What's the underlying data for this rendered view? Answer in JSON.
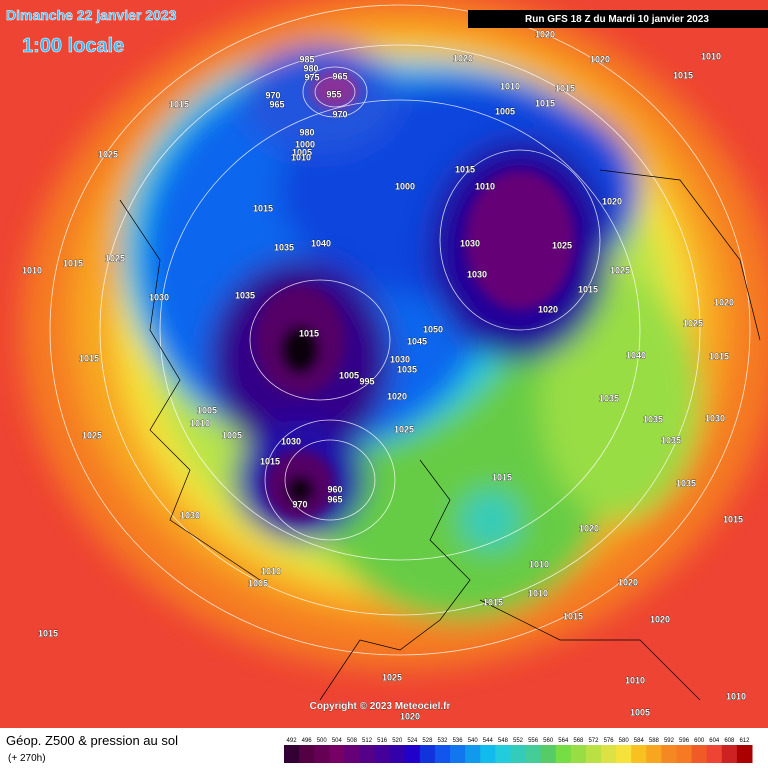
{
  "header": {
    "date": "Dimanche 22 janvier 2023",
    "local_time": "1:00 locale",
    "run": "Run GFS 18 Z du Mardi 10 janvier 2023"
  },
  "map": {
    "pressure_labels": [
      1020,
      1020,
      1010,
      1005,
      1015,
      1015,
      1020,
      1015,
      1010,
      1015,
      1025,
      985,
      980,
      975,
      965,
      955,
      970,
      965,
      970,
      980,
      1000,
      1005,
      1010,
      1015,
      1010,
      1000,
      1015,
      1035,
      1040,
      1030,
      1025,
      1020,
      1025,
      1030,
      1015,
      1020,
      1030,
      1035,
      1015,
      1050,
      1045,
      1030,
      1005,
      995,
      1035,
      1020,
      1025,
      1005,
      1010,
      1005,
      1030,
      970,
      960,
      965,
      1015,
      1030,
      1015,
      1035,
      1040,
      1035,
      1035,
      1030,
      1035,
      1025,
      1020,
      1015,
      1015,
      1020,
      1010,
      1010,
      1015,
      1015,
      1020,
      1020,
      1010,
      1005,
      1015,
      1025,
      1020,
      1010,
      1005,
      1010,
      1015,
      1025,
      1010,
      1015,
      1025
    ]
  },
  "copyright": "Copyright © 2023 Meteociel.fr",
  "footer": {
    "title": "Géop. Z500 & pression au sol",
    "lead_time": "(+ 270h)"
  },
  "colorbar": {
    "ticks": [
      492,
      496,
      500,
      504,
      508,
      512,
      516,
      520,
      524,
      528,
      532,
      536,
      540,
      544,
      548,
      552,
      556,
      560,
      564,
      568,
      572,
      576,
      580,
      584,
      588,
      592,
      596,
      600,
      604,
      608,
      612
    ]
  }
}
